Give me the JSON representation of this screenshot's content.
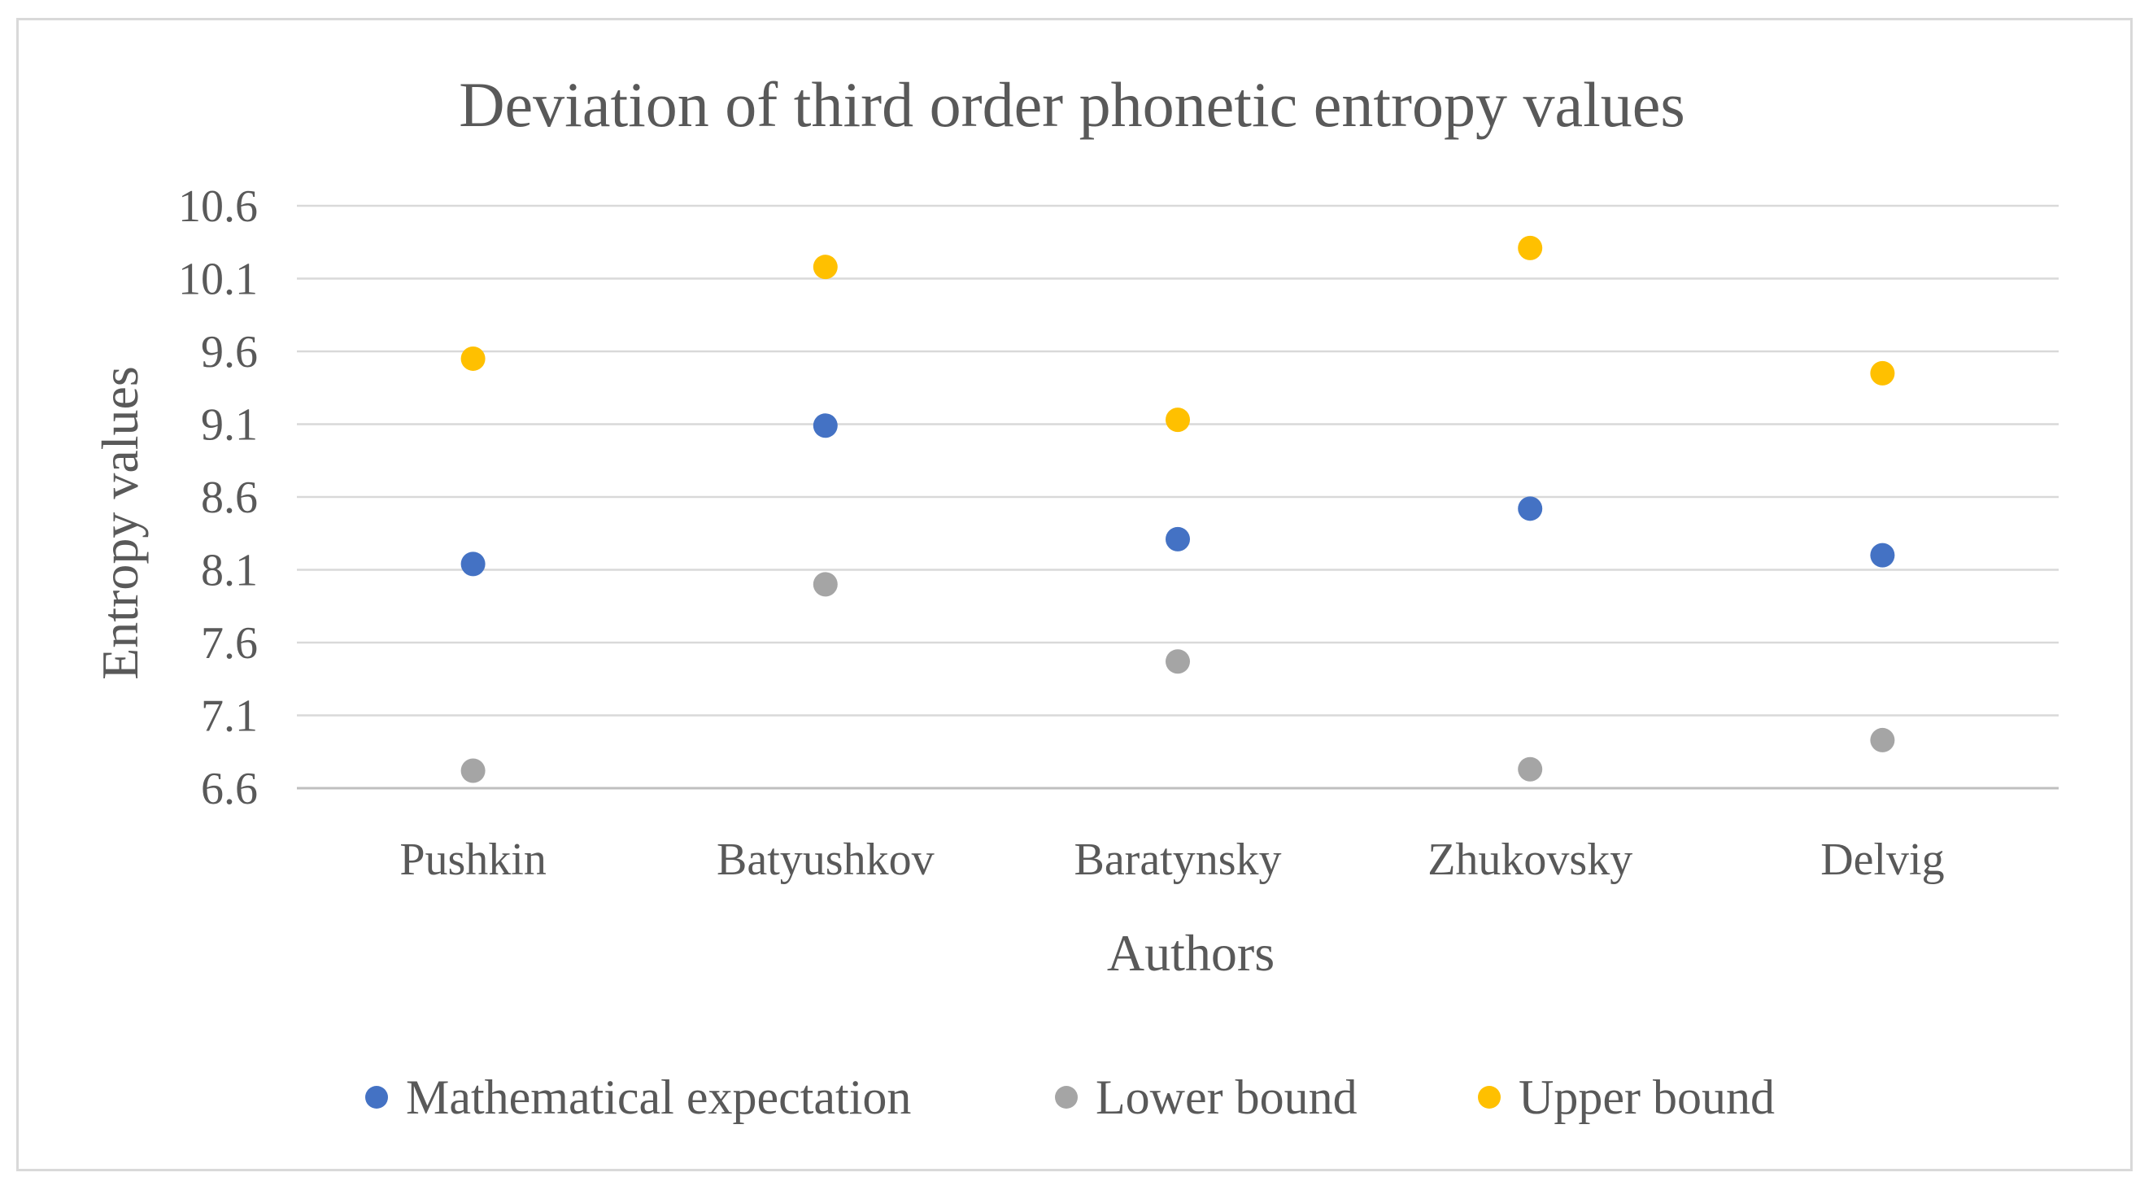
{
  "chart_data": {
    "type": "scatter",
    "title": "Deviation of third order phonetic entropy values",
    "xlabel": "Authors",
    "ylabel": "Entropy values",
    "categories": [
      "Pushkin",
      "Batyushkov",
      "Baratynsky",
      "Zhukovsky",
      "Delvig"
    ],
    "ylim": [
      6.6,
      10.6
    ],
    "yticks": [
      "10.6",
      "10.1",
      "9.6",
      "9.1",
      "8.6",
      "8.1",
      "7.6",
      "7.1",
      "6.6"
    ],
    "grid": true,
    "legend_position": "bottom",
    "series": [
      {
        "name": "Mathematical expectation",
        "color": "#4472C4",
        "values": [
          8.14,
          9.09,
          8.31,
          8.52,
          8.2
        ]
      },
      {
        "name": "Lower bound",
        "color": "#A5A5A5",
        "values": [
          6.72,
          8.0,
          7.47,
          6.73,
          6.93
        ]
      },
      {
        "name": "Upper bound",
        "color": "#FFC000",
        "values": [
          9.55,
          10.18,
          9.13,
          10.31,
          9.45
        ]
      }
    ]
  }
}
